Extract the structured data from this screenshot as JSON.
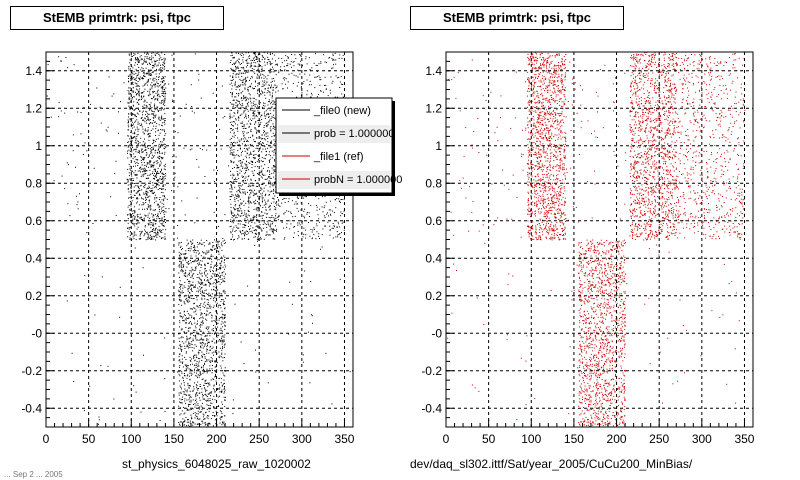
{
  "chart_data": [
    {
      "type": "scatter",
      "title": "StEMB primtrk: psi, ftpc",
      "xlabel": "st_physics_6048025_raw_1020002",
      "ylabel": "",
      "xlim": [
        0,
        360
      ],
      "ylim": [
        -0.5,
        1.5
      ],
      "x_ticks": [
        "0",
        "50",
        "100",
        "150",
        "200",
        "250",
        "300",
        "350"
      ],
      "y_ticks": [
        "-0.4",
        "-0.2",
        "-0",
        "0.2",
        "0.4",
        "0.6",
        "0.8",
        "1",
        "1.2",
        "1.4"
      ],
      "grid": true,
      "marker_color": "#000000",
      "series": [
        {
          "regions": [
            {
              "x": [
                95,
                140
              ],
              "y": [
                0.5,
                1.5
              ],
              "density": "high"
            },
            {
              "x": [
                215,
                270
              ],
              "y": [
                0.5,
                1.5
              ],
              "density": "high"
            },
            {
              "x": [
                270,
                350
              ],
              "y": [
                0.5,
                1.5
              ],
              "density": "medium"
            },
            {
              "x": [
                155,
                210
              ],
              "y": [
                -0.5,
                0.5
              ],
              "density": "high"
            },
            {
              "x": [
                0,
                95
              ],
              "y": [
                0.5,
                1.5
              ],
              "density": "low"
            },
            {
              "x": [
                140,
                215
              ],
              "y": [
                0.5,
                1.5
              ],
              "density": "low"
            },
            {
              "x": [
                0,
                155
              ],
              "y": [
                -0.5,
                0.5
              ],
              "density": "very-low"
            },
            {
              "x": [
                210,
                360
              ],
              "y": [
                -0.5,
                0.5
              ],
              "density": "very-low"
            }
          ]
        }
      ],
      "legend": {
        "placement": "top-right",
        "entries": [
          {
            "label": "_file0 (new)",
            "color": "#000000"
          },
          {
            "label": "prob = 1.000000",
            "color": "#000000"
          },
          {
            "label": "_file1 (ref)",
            "color": "#cc0000"
          },
          {
            "label": "probN = 1.000000",
            "color": "#cc0000"
          }
        ]
      }
    },
    {
      "type": "scatter",
      "title": "StEMB primtrk: psi, ftpc",
      "xlabel": "dev/daq_sl302.ittf/Sat/year_2005/CuCu200_MinBias/",
      "ylabel": "",
      "xlim": [
        0,
        360
      ],
      "ylim": [
        -0.5,
        1.5
      ],
      "x_ticks": [
        "0",
        "50",
        "100",
        "150",
        "200",
        "250",
        "300",
        "350"
      ],
      "y_ticks": [
        "-0.4",
        "-0.2",
        "-0",
        "0.2",
        "0.4",
        "0.6",
        "0.8",
        "1",
        "1.2",
        "1.4"
      ],
      "grid": true,
      "marker_color": "#cc0000",
      "series": [
        {
          "regions": [
            {
              "x": [
                95,
                140
              ],
              "y": [
                0.5,
                1.5
              ],
              "density": "high"
            },
            {
              "x": [
                215,
                270
              ],
              "y": [
                0.5,
                1.5
              ],
              "density": "high"
            },
            {
              "x": [
                270,
                350
              ],
              "y": [
                0.5,
                1.5
              ],
              "density": "medium"
            },
            {
              "x": [
                155,
                210
              ],
              "y": [
                -0.5,
                0.5
              ],
              "density": "high"
            },
            {
              "x": [
                0,
                95
              ],
              "y": [
                0.5,
                1.5
              ],
              "density": "low"
            },
            {
              "x": [
                140,
                215
              ],
              "y": [
                0.5,
                1.5
              ],
              "density": "low"
            },
            {
              "x": [
                0,
                155
              ],
              "y": [
                -0.5,
                0.5
              ],
              "density": "very-low"
            },
            {
              "x": [
                210,
                360
              ],
              "y": [
                -0.5,
                0.5
              ],
              "density": "very-low"
            }
          ]
        }
      ]
    }
  ],
  "footnote": "... Sep  2 ... 2005"
}
